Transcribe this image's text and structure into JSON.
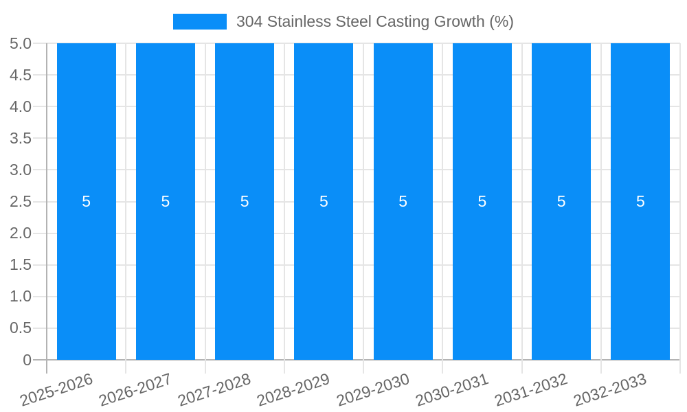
{
  "legend": {
    "label": "304 Stainless Steel Casting Growth (%)"
  },
  "colors": {
    "bar": "#0a8ef8",
    "gridline": "#e5e5e5",
    "zero_line": "#b3b3b3",
    "tick_text": "#666666",
    "bar_label_text": "#ffffff"
  },
  "chart_data": {
    "type": "bar",
    "title": "304 Stainless Steel Casting Growth (%)",
    "categories": [
      "2025-2026",
      "2026-2027",
      "2027-2028",
      "2028-2029",
      "2029-2030",
      "2030-2031",
      "2031-2032",
      "2032-2033"
    ],
    "values": [
      5,
      5,
      5,
      5,
      5,
      5,
      5,
      5
    ],
    "bar_labels": [
      "5",
      "5",
      "5",
      "5",
      "5",
      "5",
      "5",
      "5"
    ],
    "y_tick_labels": [
      "5.0",
      "4.5",
      "4.0",
      "3.5",
      "3.0",
      "2.5",
      "2.0",
      "1.5",
      "1.0",
      "0.5",
      "0"
    ],
    "xlabel": "",
    "ylabel": "",
    "ylim": [
      0,
      5
    ],
    "y_step": 0.5,
    "grid": true,
    "legend_position": "top"
  }
}
